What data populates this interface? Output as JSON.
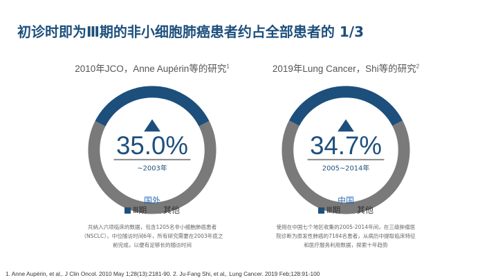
{
  "title": "初诊时即为Ⅲ期的非小细胞肺癌患者约占全部患者的 1/3",
  "colors": {
    "stage3": "#1d4f7c",
    "others": "#7a7a7a",
    "center_text": "#1d4f7c",
    "region_text": "#2a6db5"
  },
  "legend": {
    "stage3": "Ⅲ期",
    "others": "其他"
  },
  "chart_data": [
    {
      "type": "pie",
      "subtitle": "2010年JCO，Anne Aupérin等的研究",
      "ref": "1",
      "categories": [
        "Ⅲ期",
        "其他"
      ],
      "values": [
        35.0,
        65.0
      ],
      "center_label": "35.0%",
      "period": "~2003年",
      "region": "国外",
      "description": "共纳入六项临床的数据，包含1205名非小细胞肺癌患者（NSCLC），中位随访时间6年，所有研究需要在2003年底之前完成，以便有足够长的随访时间"
    },
    {
      "type": "pie",
      "subtitle": "2019年Lung Cancer，Shi等的研究",
      "ref": "2",
      "categories": [
        "Ⅲ期",
        "其他"
      ],
      "values": [
        34.7,
        65.3
      ],
      "center_label": "34.7%",
      "period": "2005~2014年",
      "region": "中国",
      "description": "使用在中国七个地区收集的2005-2014年间，在三级肿瘤医院诊断为原发性肺癌的7184名患者，从病历中提取临床特征和医疗服务利用数据，探索十年趋势"
    }
  ],
  "footnote": "1. Anne Aupérin, et al,. J Clin Oncol. 2010 May 1;28(13):2181-90.  2. Ju-Fang Shi, et al,. Lung Cancer. 2019 Feb;128:91-100"
}
